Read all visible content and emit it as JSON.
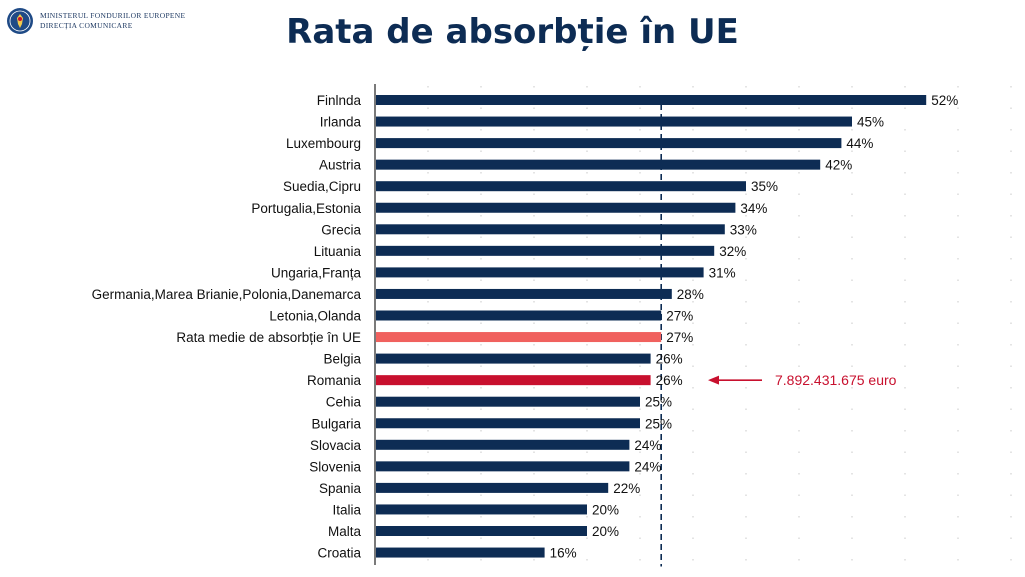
{
  "header": {
    "org_line1": "MINISTERUL FONDURILOR EUROPENE",
    "org_line2": "DIRECȚIA COMUNICARE"
  },
  "colors": {
    "bar": "#0d2c54",
    "average_bar": "#f0615e",
    "highlight_bar": "#c8102e",
    "annotation": "#c8102e",
    "average_line": "#0d2c54",
    "grid": "#c8c8c8"
  },
  "chart_data": {
    "type": "bar",
    "orientation": "horizontal",
    "title": "Rata de absorbție în UE",
    "xlabel": "",
    "ylabel": "",
    "xlim": [
      0,
      60
    ],
    "grid": "vertical dotted",
    "average_reference_line": 27,
    "categories": [
      "Finlnda",
      "Irlanda",
      "Luxembourg",
      "Austria",
      "Suedia,Cipru",
      "Portugalia,Estonia",
      "Grecia",
      "Lituania",
      "Ungaria,Franța",
      "Germania,Marea Brianie,Polonia,Danemarca",
      "Letonia,Olanda",
      "Rata medie de absorbție în UE",
      "Belgia",
      "Romania",
      "Cehia",
      "Bulgaria",
      "Slovacia",
      "Slovenia",
      "Spania",
      "Italia",
      "Malta",
      "Croatia"
    ],
    "values": [
      52,
      45,
      44,
      42,
      35,
      34,
      33,
      32,
      31,
      28,
      27,
      27,
      26,
      26,
      25,
      25,
      24,
      24,
      22,
      20,
      20,
      16
    ],
    "value_labels": [
      "52%",
      "45%",
      "44%",
      "42%",
      "35%",
      "34%",
      "33%",
      "32%",
      "31%",
      "28%",
      "27%",
      "27%",
      "26%",
      "26%",
      "25%",
      "25%",
      "24%",
      "24%",
      "22%",
      "20%",
      "20%",
      "16%"
    ],
    "highlight": {
      "average_index": 11,
      "romania_index": 13
    },
    "annotation": {
      "text": "7.892.431.675 euro",
      "target": "Romania"
    }
  }
}
